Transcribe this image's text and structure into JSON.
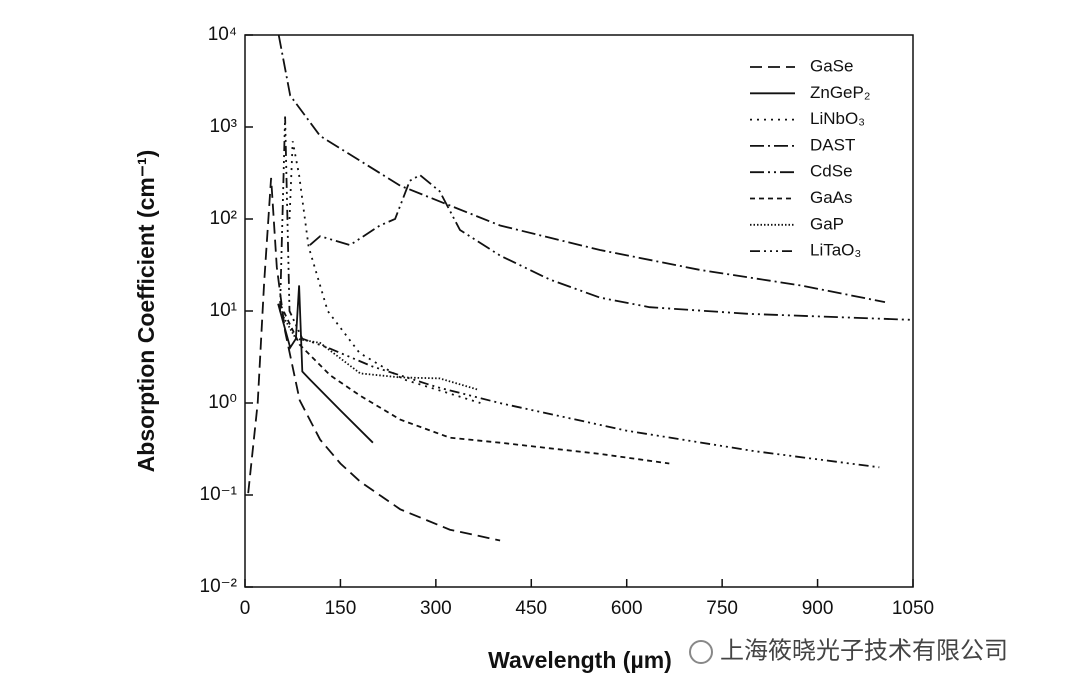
{
  "chart_data": {
    "type": "line",
    "x_label": "Wavelength (µm)",
    "y_label": "Absorption Coefficient (cm⁻¹)",
    "watermark": "上海筱晓光子技术有限公司",
    "yscale": "log",
    "xlim": [
      0,
      1050
    ],
    "xticks": [
      0,
      150,
      300,
      450,
      600,
      750,
      900,
      1050
    ],
    "ylim": [
      0.01,
      10000
    ],
    "yticks": [
      {
        "value": 0.01,
        "label": "10⁻²"
      },
      {
        "value": 0.1,
        "label": "10⁻¹"
      },
      {
        "value": 1,
        "label": "10⁰"
      },
      {
        "value": 10,
        "label": "10¹"
      },
      {
        "value": 100,
        "label": "10²"
      },
      {
        "value": 1000,
        "label": "10³"
      },
      {
        "value": 10000,
        "label": "10⁴"
      }
    ],
    "legend_position": "upper right",
    "series": [
      {
        "name": "GaSe",
        "color": "#111111",
        "dash": "12,6",
        "x": [
          5,
          20,
          30,
          41,
          50,
          63,
          86,
          118,
          150,
          181,
          244,
          322,
          401
        ],
        "values": [
          0.105,
          1,
          20,
          280,
          30,
          6,
          1.07,
          0.4,
          0.22,
          0.14,
          0.07,
          0.042,
          0.032
        ]
      },
      {
        "name": "ZnGeP₂",
        "color": "#111111",
        "x": [
          52,
          71,
          80,
          85,
          90,
          102,
          150,
          201
        ],
        "values": [
          12,
          4,
          5,
          19,
          2.2,
          1.8,
          0.83,
          0.37
        ]
      },
      {
        "name": "LiNbO₃",
        "color": "#111111",
        "dash": "2,5",
        "x": [
          70,
          75,
          85,
          100,
          130,
          180,
          250,
          370
        ],
        "values": [
          100,
          700,
          300,
          50,
          10,
          3.5,
          1.8,
          1.0
        ]
      },
      {
        "name": "DAST",
        "color": "#111111",
        "dash": "14,4,2,4",
        "x": [
          53,
          71,
          118,
          244,
          401,
          558,
          715,
          873,
          1006
        ],
        "values": [
          10000,
          2200,
          800,
          230,
          85,
          46,
          28,
          19,
          12.5
        ]
      },
      {
        "name": "CdSe",
        "color": "#111111",
        "dash": "14,4,2,4,2,4",
        "x": [
          102,
          118,
          165,
          212,
          236,
          259,
          275,
          306,
          338,
          401,
          479,
          558,
          636,
          793,
          1050
        ],
        "values": [
          52,
          65,
          52,
          85,
          100,
          260,
          300,
          200,
          76,
          40,
          22,
          14,
          11,
          9.3,
          8
        ]
      },
      {
        "name": "GaAs",
        "color": "#111111",
        "dash": "5,4",
        "x": [
          55,
          86,
          134,
          181,
          244,
          322,
          401,
          558,
          667
        ],
        "values": [
          12,
          4.3,
          2.0,
          1.2,
          0.66,
          0.42,
          0.37,
          0.28,
          0.22
        ]
      },
      {
        "name": "GaP",
        "color": "#111111",
        "dash": "1.5,2",
        "x": [
          55,
          80,
          118,
          181,
          244,
          306,
          366
        ],
        "values": [
          10,
          5,
          4.5,
          2.1,
          1.9,
          1.85,
          1.4
        ]
      },
      {
        "name": "LiTaO₃",
        "color": "#111111",
        "dash": "10,4,2,4,2,4,2,4",
        "x": [
          55,
          63,
          70,
          90,
          130,
          200,
          300,
          400,
          600,
          800,
          997
        ],
        "values": [
          10,
          1300,
          10,
          5,
          4,
          2.5,
          1.5,
          1.0,
          0.5,
          0.3,
          0.2
        ]
      }
    ]
  }
}
